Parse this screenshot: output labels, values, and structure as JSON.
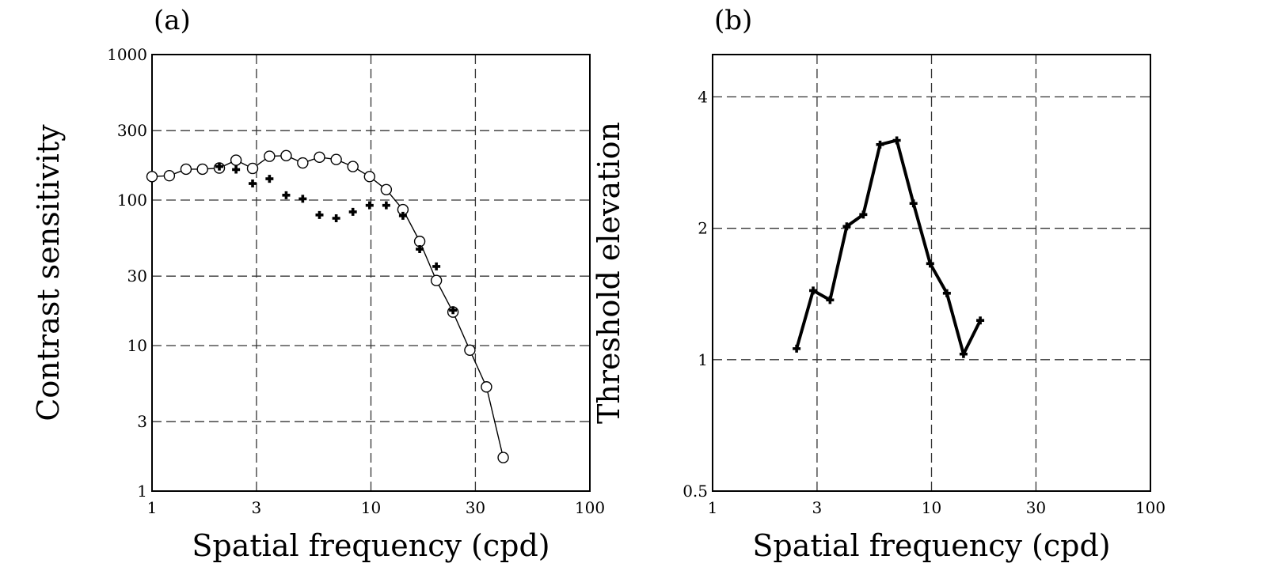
{
  "chart_data": [
    {
      "type": "line",
      "panel_label": "(a)",
      "xlabel": "Spatial frequency (cpd)",
      "ylabel": "Contrast sensitivity",
      "x_scale": "log",
      "y_scale": "log",
      "xlim": [
        1,
        100
      ],
      "ylim": [
        1,
        1000
      ],
      "x_ticks": [
        1,
        3,
        10,
        30,
        100
      ],
      "x_tick_labels": [
        "1",
        "3",
        "10",
        "30",
        "100"
      ],
      "y_ticks": [
        1,
        3,
        10,
        30,
        100,
        300,
        1000
      ],
      "y_tick_labels": [
        "1",
        "3",
        "10",
        "30",
        "100",
        "300",
        "1000"
      ],
      "grid": true,
      "series": [
        {
          "marker": "open-circle",
          "line": "thin-solid",
          "x": [
            1.0,
            1.2,
            1.43,
            1.7,
            2.03,
            2.42,
            2.88,
            3.44,
            4.1,
            4.88,
            5.82,
            6.94,
            8.27,
            9.86,
            11.75,
            14.0,
            16.7,
            19.9,
            23.7,
            28.3,
            33.7,
            40.2
          ],
          "y": [
            145,
            147,
            163,
            163,
            166,
            188,
            165,
            200,
            202,
            180,
            197,
            190,
            170,
            145,
            118,
            86,
            52,
            28,
            17,
            9.3,
            5.2,
            1.7
          ]
        },
        {
          "marker": "filled-cross",
          "line": "none",
          "x": [
            2.03,
            2.42,
            2.88,
            3.44,
            4.1,
            4.88,
            5.82,
            6.94,
            8.27,
            9.86,
            11.75,
            14.0,
            16.7,
            19.9,
            23.7
          ],
          "y": [
            170,
            162,
            130,
            140,
            108,
            102,
            79,
            75,
            83,
            92,
            92,
            78,
            46,
            35,
            17.5
          ]
        }
      ]
    },
    {
      "type": "line",
      "panel_label": "(b)",
      "xlabel": "Spatial frequency (cpd)",
      "ylabel": "Threshold elevation",
      "x_scale": "log",
      "y_scale": "log",
      "xlim": [
        1,
        100
      ],
      "ylim": [
        0.5,
        5
      ],
      "x_ticks": [
        1,
        3,
        10,
        30,
        100
      ],
      "x_tick_labels": [
        "1",
        "3",
        "10",
        "30",
        "100"
      ],
      "y_ticks": [
        0.5,
        1,
        2,
        4
      ],
      "y_tick_labels": [
        "0.5",
        "1",
        "2",
        "4"
      ],
      "grid": true,
      "series": [
        {
          "marker": "filled-cross",
          "line": "thick-solid",
          "x": [
            2.42,
            2.88,
            3.44,
            4.1,
            4.88,
            5.82,
            6.94,
            8.27,
            9.86,
            11.75,
            14.0,
            16.7
          ],
          "y": [
            1.06,
            1.44,
            1.37,
            2.02,
            2.15,
            3.11,
            3.18,
            2.28,
            1.66,
            1.42,
            1.03,
            1.23
          ]
        }
      ]
    }
  ]
}
